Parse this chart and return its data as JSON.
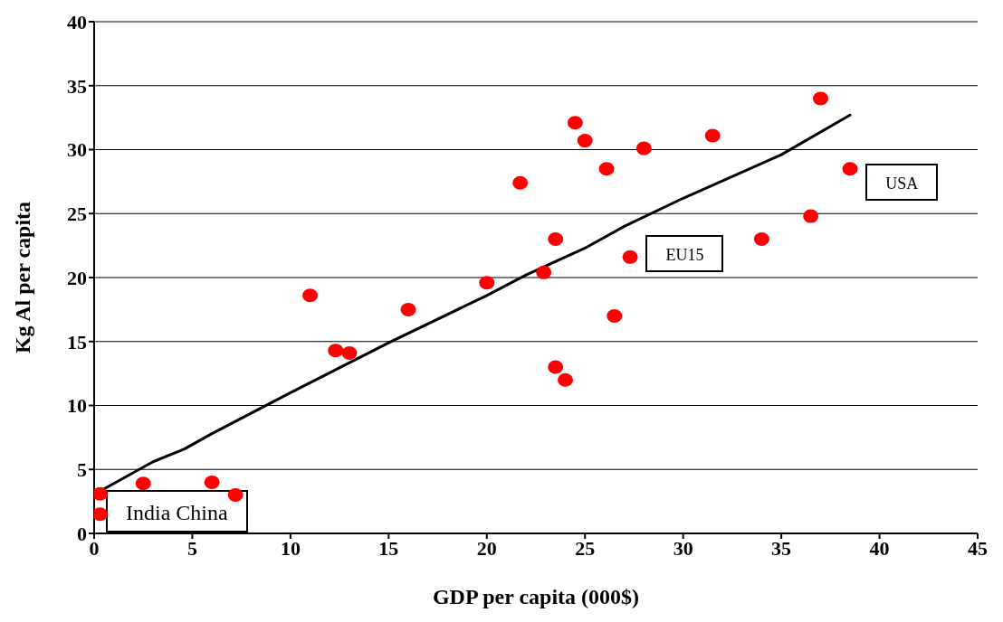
{
  "chart_data": {
    "type": "scatter",
    "xlabel": "GDP per capita (000$)",
    "ylabel": "Kg Al per capita",
    "xlim": [
      0,
      45
    ],
    "xticks": [
      0,
      5,
      10,
      15,
      20,
      25,
      30,
      35,
      40,
      45
    ],
    "ylim": [
      0,
      40
    ],
    "yticks": [
      0,
      5,
      10,
      15,
      20,
      25,
      30,
      35,
      40
    ],
    "grid": "y",
    "marker": "circle",
    "series": [
      {
        "color": "#ff0000",
        "x": [
          0.3,
          0.3,
          2.5,
          6.0,
          7.2,
          11.0,
          12.3,
          13.0,
          16.0,
          20.0,
          21.7,
          22.9,
          23.5,
          23.5,
          24.0,
          24.5,
          25.0,
          26.1,
          26.5,
          28.0,
          27.3,
          31.5,
          34.0,
          36.5,
          37.0,
          38.5
        ],
        "values": [
          3.1,
          1.5,
          3.9,
          4.0,
          3.0,
          18.6,
          14.3,
          14.1,
          17.5,
          19.6,
          27.4,
          20.4,
          23.0,
          13.0,
          12.0,
          32.1,
          30.7,
          28.5,
          17.0,
          30.1,
          21.6,
          31.1,
          23.0,
          24.8,
          34.0,
          28.5
        ]
      },
      {
        "type": "line",
        "color": "#000000",
        "marker": "none",
        "line_style": "solid",
        "x": [
          0.3,
          3,
          4.6,
          6,
          10,
          15,
          20,
          22,
          25,
          27,
          30,
          35,
          38.5
        ],
        "values": [
          3.3,
          5.6,
          6.6,
          7.8,
          11,
          14.9,
          18.6,
          20.2,
          22.3,
          24,
          26.2,
          29.6,
          32.7
        ]
      }
    ],
    "annotations": [
      "India China",
      "EU15",
      "USA"
    ]
  }
}
